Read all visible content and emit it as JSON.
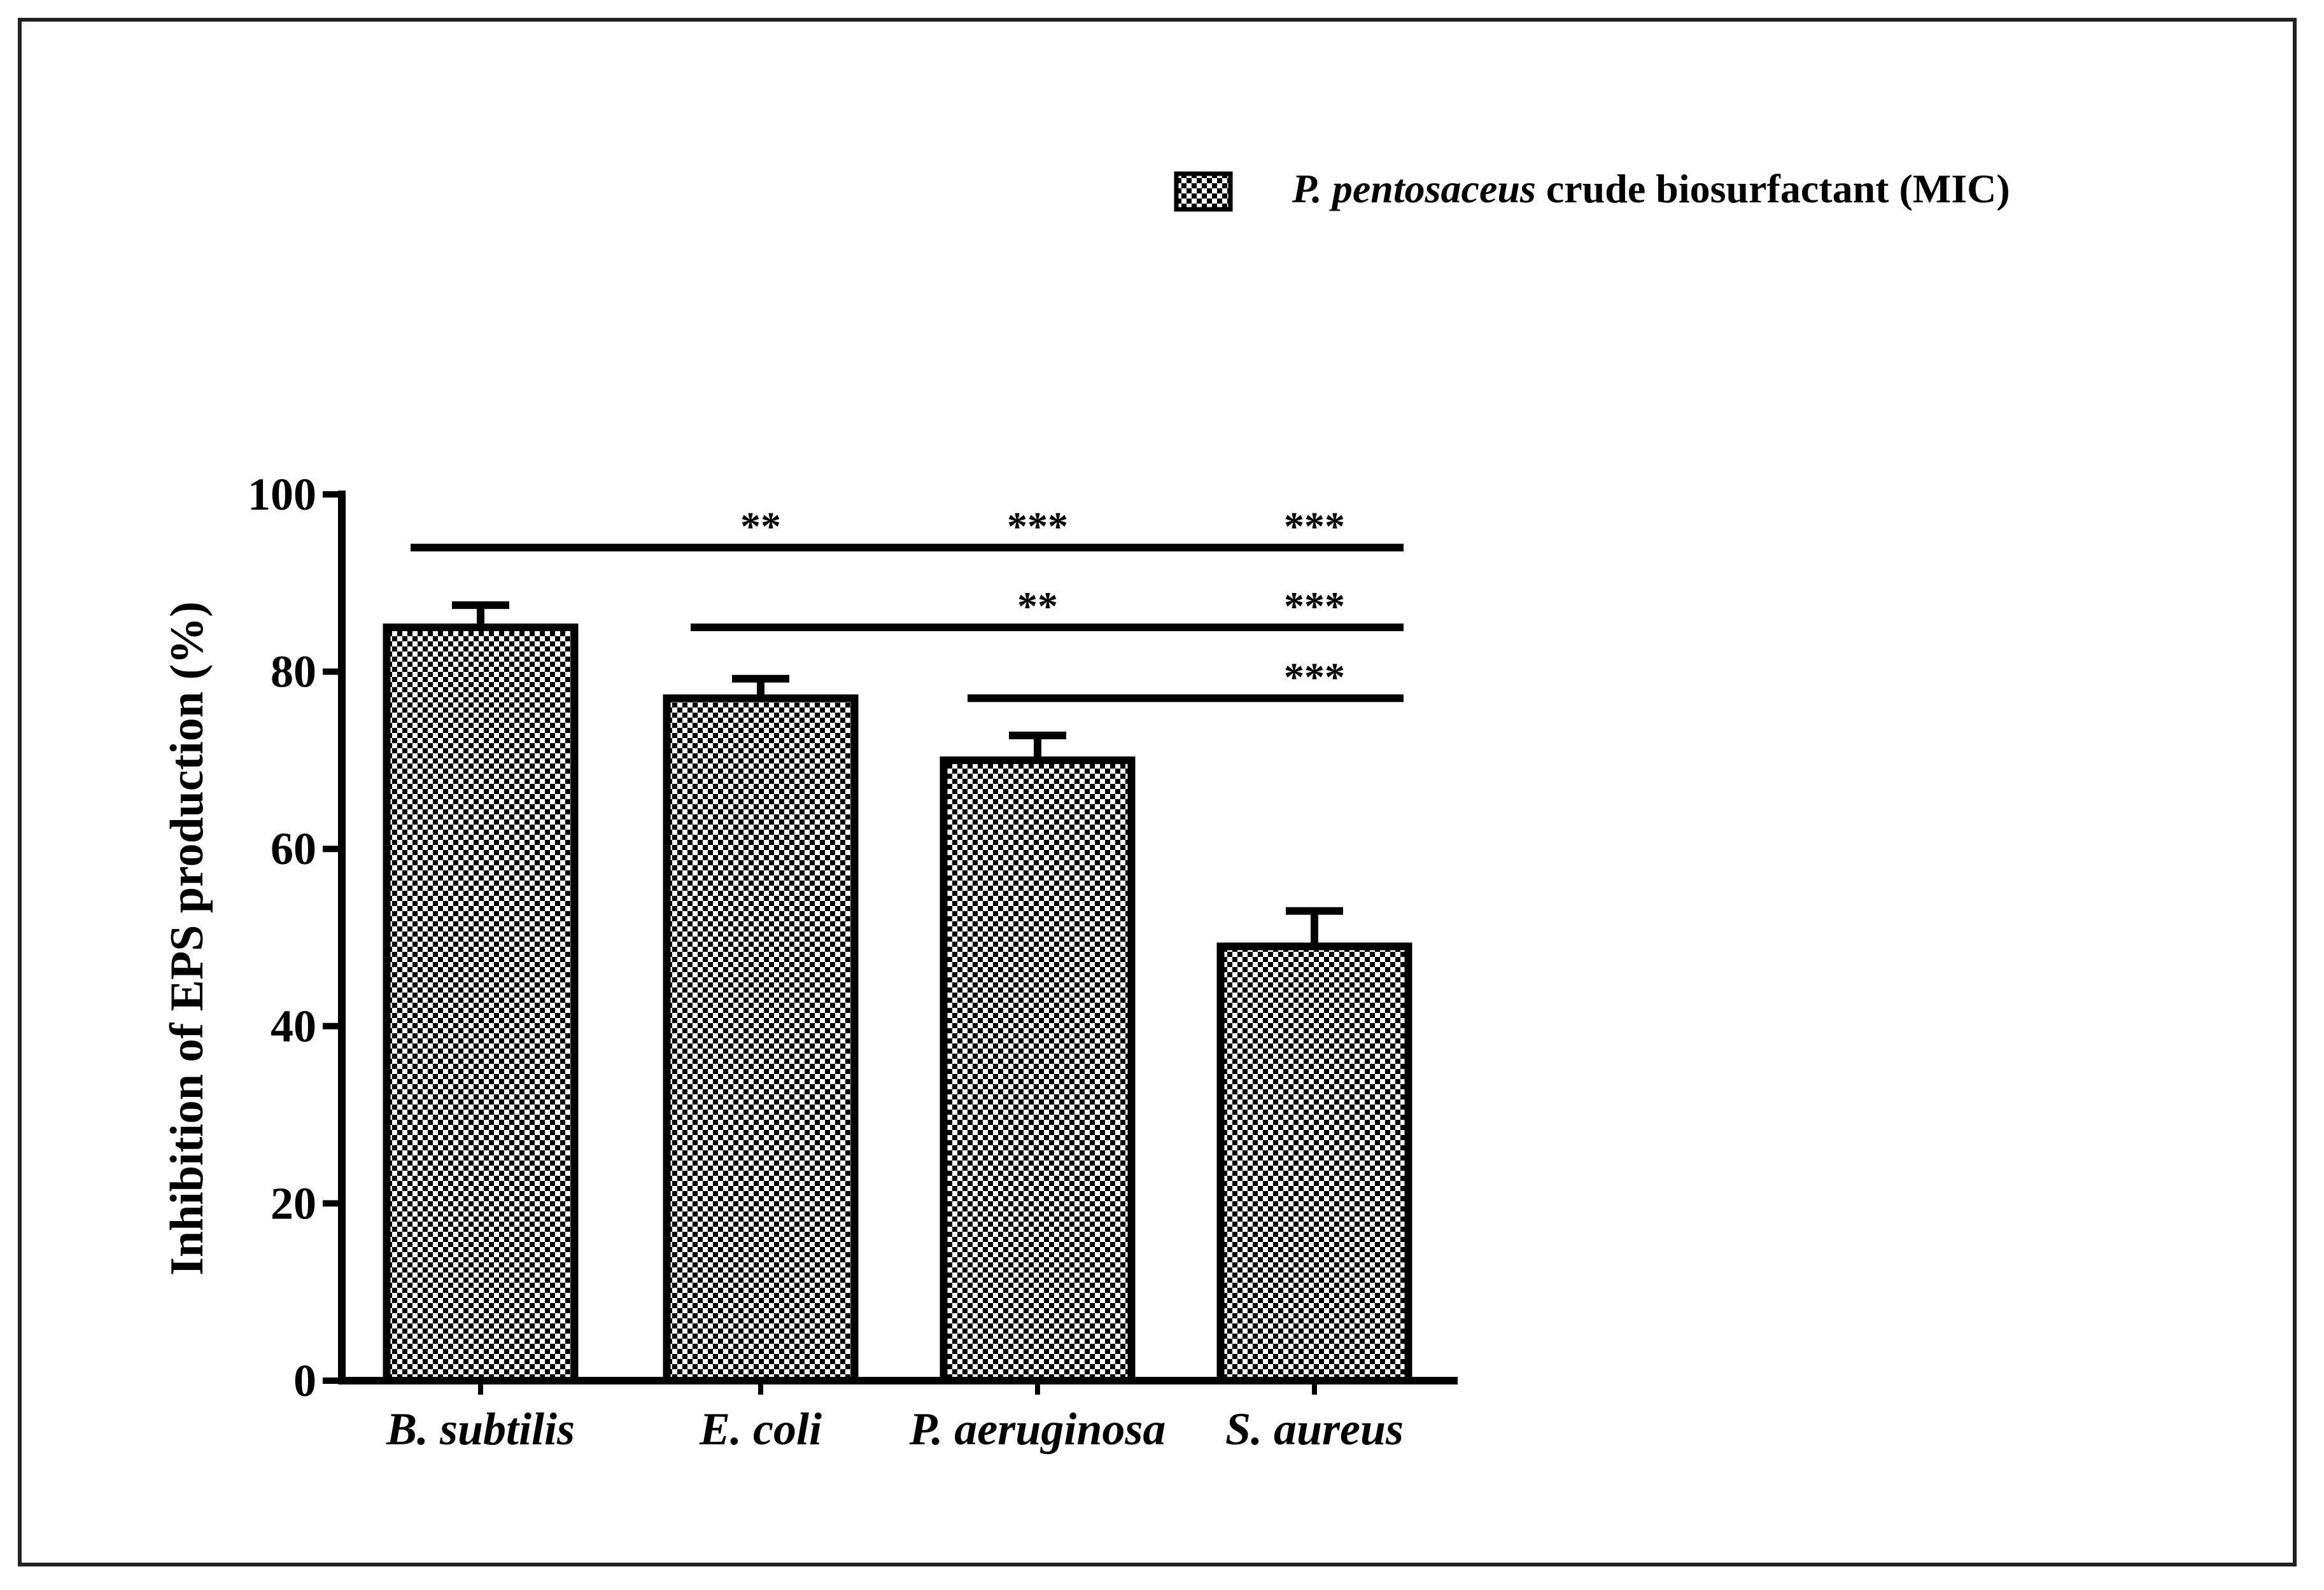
{
  "chart_data": {
    "type": "bar",
    "ylabel": "Inhibition of EPS production (%)",
    "xlabel": "",
    "ylim": [
      0,
      100
    ],
    "yticks": [
      0,
      20,
      40,
      60,
      80,
      100
    ],
    "categories": [
      "B. subtilis",
      "E. coli",
      "P. aeruginosa",
      "S. aureus"
    ],
    "series": [
      {
        "name_italic": "P. pentosaceus",
        "name_rest": " crude biosurfactant (MIC)",
        "values": [
          85,
          77,
          70,
          49
        ],
        "errors": [
          2.5,
          2.2,
          2.8,
          4.0
        ]
      }
    ],
    "legend_position": "top-right",
    "significance": [
      {
        "from": 0,
        "to": 3,
        "y": 94,
        "labels": [
          {
            "at": 1,
            "text": "**"
          },
          {
            "at": 2,
            "text": "***"
          },
          {
            "at": 3,
            "text": "***"
          }
        ]
      },
      {
        "from": 1,
        "to": 3,
        "y": 85,
        "labels": [
          {
            "at": 2,
            "text": "**"
          },
          {
            "at": 3,
            "text": "***"
          }
        ]
      },
      {
        "from": 2,
        "to": 3,
        "y": 77,
        "labels": [
          {
            "at": 3,
            "text": "***"
          }
        ]
      }
    ],
    "colors": {
      "bar_fill_dark": "#000000",
      "bar_fill_light": "#ffffff",
      "axis": "#000000"
    }
  }
}
